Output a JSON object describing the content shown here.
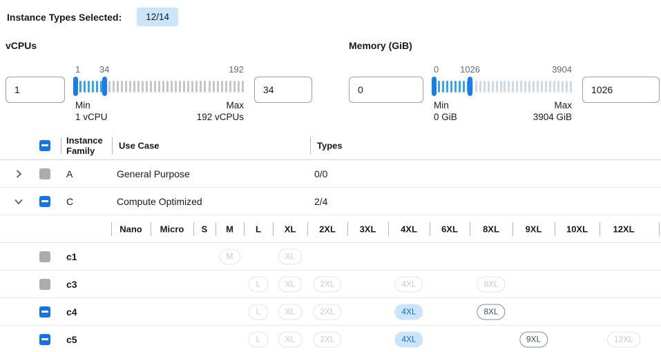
{
  "topbar": {
    "label": "Instance Types Selected:",
    "badge": "12/14"
  },
  "filters": [
    {
      "title": "vCPUs",
      "low_value": "1",
      "high_value": "34",
      "slider": {
        "min": 1,
        "max": 192,
        "low": 1,
        "high": 34,
        "low_label": "1",
        "high_label": "34",
        "max_label": "192",
        "min_caption": "Min",
        "min_detail": "1 vCPU",
        "max_caption": "Max",
        "max_detail": "192 vCPUs",
        "active_color": "#36a2f2",
        "inactive_color": "#c4c7ca",
        "handle_color": "#1a7de8"
      }
    },
    {
      "title": "Memory (GiB)",
      "low_value": "0",
      "high_value": "1026",
      "slider": {
        "min": 0,
        "max": 3904,
        "low": 0,
        "high": 1026,
        "low_label": "0",
        "high_label": "1026",
        "max_label": "3904",
        "min_caption": "Min",
        "min_detail": "0 GiB",
        "max_caption": "Max",
        "max_detail": "3904 GiB",
        "active_color": "#36a2f2",
        "inactive_color": "#ccdaeb",
        "handle_color": "#1a7de8"
      }
    }
  ],
  "table": {
    "headers": {
      "family": "Instance Family",
      "use_case": "Use Case",
      "types": "Types"
    },
    "size_columns": [
      "Nano",
      "Micro",
      "S",
      "M",
      "L",
      "XL",
      "2XL",
      "3XL",
      "4XL",
      "6XL",
      "8XL",
      "9XL",
      "10XL",
      "12XL"
    ],
    "family_rows": [
      {
        "expand": "right",
        "checkbox": "disabled",
        "family": "A",
        "use_case": "General Purpose",
        "types": "0/0"
      },
      {
        "expand": "down",
        "checkbox": "indeterminate",
        "family": "C",
        "use_case": "Compute Optimized",
        "types": "2/4"
      }
    ],
    "instance_rows": [
      {
        "checkbox": "disabled",
        "name": "c1",
        "badges": [
          {
            "size": "M",
            "state": "disabled"
          },
          {
            "size": "XL",
            "state": "disabled"
          }
        ]
      },
      {
        "checkbox": "disabled",
        "name": "c3",
        "badges": [
          {
            "size": "L",
            "state": "disabled"
          },
          {
            "size": "XL",
            "state": "disabled"
          },
          {
            "size": "2XL",
            "state": "disabled"
          },
          {
            "size": "4XL",
            "state": "disabled"
          },
          {
            "size": "8XL",
            "state": "disabled"
          }
        ]
      },
      {
        "checkbox": "indeterminate",
        "name": "c4",
        "badges": [
          {
            "size": "L",
            "state": "disabled"
          },
          {
            "size": "XL",
            "state": "disabled"
          },
          {
            "size": "2XL",
            "state": "disabled"
          },
          {
            "size": "4XL",
            "state": "selected"
          },
          {
            "size": "8XL",
            "state": "available"
          }
        ]
      },
      {
        "checkbox": "indeterminate",
        "name": "c5",
        "badges": [
          {
            "size": "L",
            "state": "disabled"
          },
          {
            "size": "XL",
            "state": "disabled"
          },
          {
            "size": "2XL",
            "state": "disabled"
          },
          {
            "size": "4XL",
            "state": "selected"
          },
          {
            "size": "9XL",
            "state": "available"
          },
          {
            "size": "12XL",
            "state": "disabled"
          }
        ]
      }
    ]
  },
  "colors": {
    "accent_blue": "#1673e6",
    "badge_selected_bg": "#cbe4fa",
    "badge_selected_text": "#186bc9",
    "count_badge_bg": "#cbe6fa",
    "disabled_gray": "#a9adb2"
  }
}
